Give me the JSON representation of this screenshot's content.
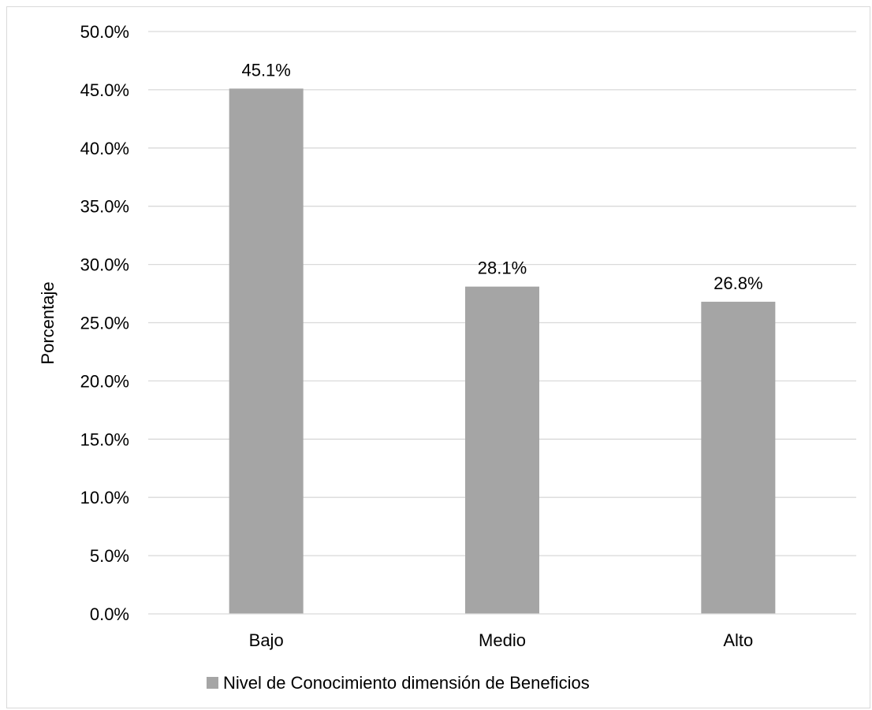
{
  "chart_data": {
    "type": "bar",
    "categories": [
      "Bajo",
      "Medio",
      "Alto"
    ],
    "series": [
      {
        "name": "Nivel de Conocimiento dimensión de Beneficios",
        "values": [
          45.1,
          28.1,
          26.8
        ],
        "data_labels": [
          "45.1%",
          "28.1%",
          "26.8%"
        ],
        "color": "#a5a5a5"
      }
    ],
    "ylabel": "Porcentaje",
    "xlabel": "",
    "ylim": [
      0,
      50
    ],
    "y_ticks": [
      0,
      5,
      10,
      15,
      20,
      25,
      30,
      35,
      40,
      45,
      50
    ],
    "y_tick_labels": [
      "0.0%",
      "5.0%",
      "10.0%",
      "15.0%",
      "20.0%",
      "25.0%",
      "30.0%",
      "35.0%",
      "40.0%",
      "45.0%",
      "50.0%"
    ],
    "grid": true,
    "gridline_color": "#d9d9d9",
    "legend_position": "bottom"
  }
}
